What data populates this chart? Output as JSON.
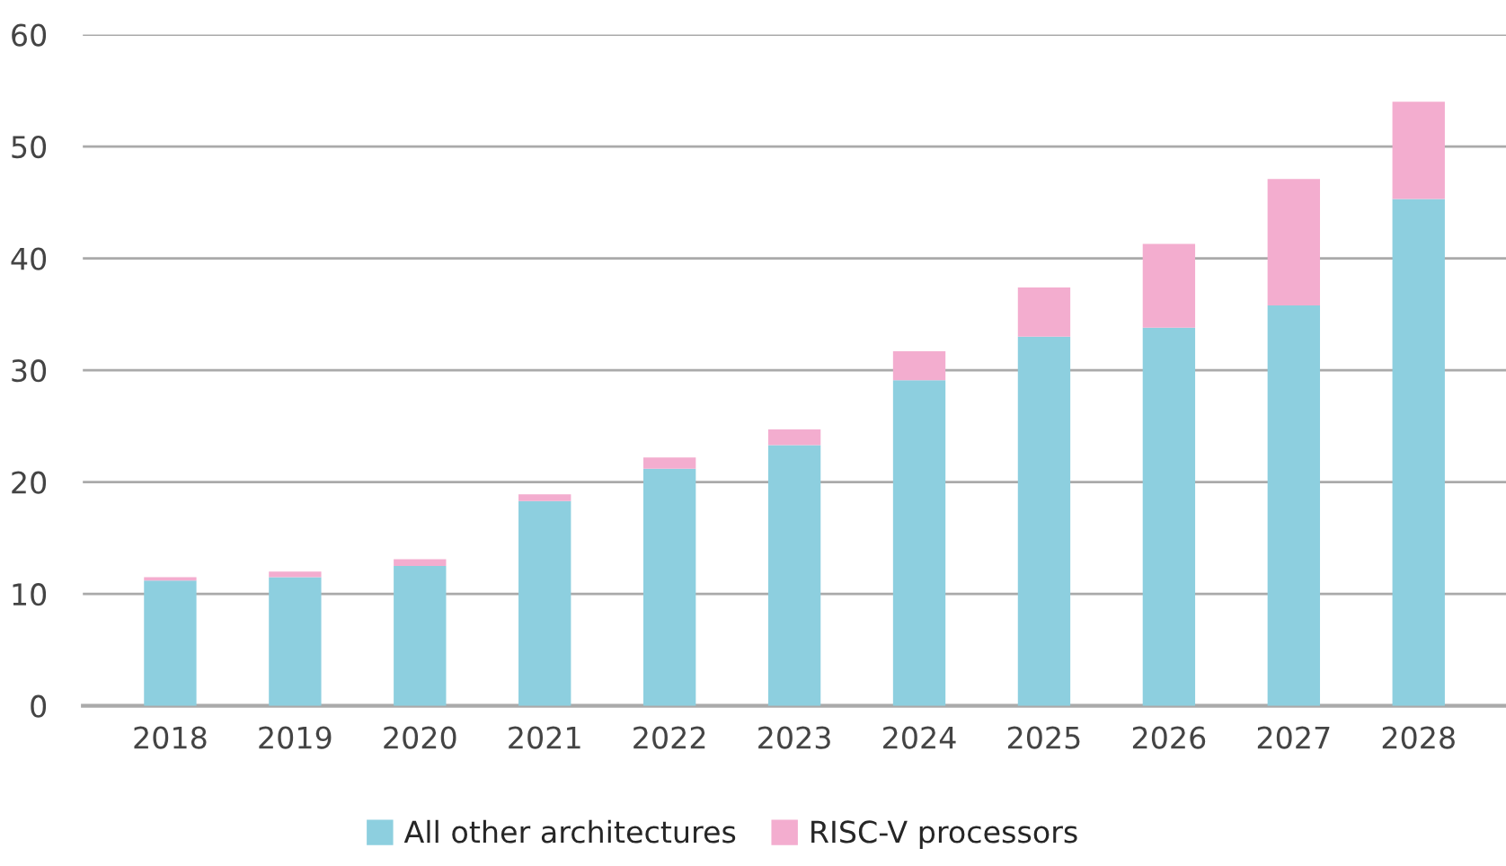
{
  "chart_data": {
    "type": "bar",
    "stacked": true,
    "categories": [
      "2018",
      "2019",
      "2020",
      "2021",
      "2022",
      "2023",
      "2024",
      "2025",
      "2026",
      "2027",
      "2028"
    ],
    "series": [
      {
        "name": "All other architectures",
        "color": "#8dcfdf",
        "values": [
          11.2,
          11.5,
          12.5,
          18.3,
          21.2,
          23.3,
          29.1,
          33.0,
          33.8,
          35.8,
          45.3
        ]
      },
      {
        "name": "RISC-V processors",
        "color": "#f3adcf",
        "values": [
          0.3,
          0.5,
          0.6,
          0.6,
          1.0,
          1.4,
          2.6,
          4.4,
          7.5,
          11.3,
          8.7
        ]
      }
    ],
    "ylim": [
      0,
      60
    ],
    "yticks": [
      0,
      10,
      20,
      30,
      40,
      50,
      60
    ],
    "grid": "y",
    "legend": "bottom"
  }
}
